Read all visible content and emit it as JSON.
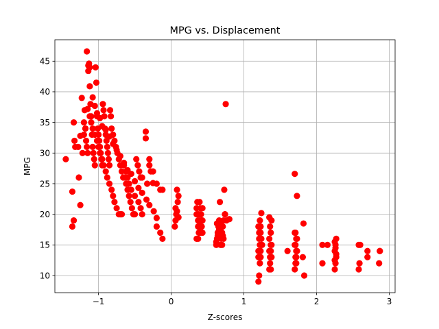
{
  "chart_data": {
    "type": "scatter",
    "title": "MPG vs. Displacement",
    "xlabel": "Z-scores",
    "ylabel": "MPG",
    "xlim": [
      -1.6,
      3.08
    ],
    "ylim": [
      7.2,
      48.5
    ],
    "xticks": [
      -1,
      0,
      1,
      2,
      3
    ],
    "xtick_labels": [
      "−1",
      "0",
      "1",
      "2",
      "3"
    ],
    "yticks": [
      10,
      15,
      20,
      25,
      30,
      35,
      40,
      45
    ],
    "ytick_labels": [
      "10",
      "15",
      "20",
      "25",
      "30",
      "35",
      "40",
      "45"
    ],
    "grid": true,
    "legend": "none",
    "point_color": "#ff0000",
    "series": [
      {
        "x": [
          -1.45,
          -1.36,
          -1.34,
          -1.33,
          -1.32,
          -1.28,
          -1.27,
          -1.25,
          -1.23,
          -1.22,
          -1.2,
          -1.19,
          -1.18,
          -1.17,
          -1.16,
          -1.15,
          -1.14,
          -1.13,
          -1.12,
          -1.11,
          -1.1,
          -1.09,
          -1.08,
          -1.07,
          -1.06,
          -1.05,
          -1.04,
          -1.03,
          -1.02,
          -1.01,
          -1.0,
          -0.99,
          -0.98,
          -0.97,
          -0.96,
          -0.95,
          -0.94,
          -0.93,
          -0.92,
          -0.91,
          -0.9,
          -0.89,
          -0.88,
          -0.87,
          -0.86,
          -0.85,
          -0.84,
          -0.83,
          -0.82,
          -0.8,
          -0.78,
          -0.76,
          -0.74,
          -0.72,
          -0.7,
          -0.68,
          -0.66,
          -0.64,
          -0.62,
          -0.6,
          -0.58,
          -0.56,
          -0.54,
          -0.52,
          -0.5,
          -0.48,
          -0.46,
          -0.44,
          -0.42,
          -0.4,
          -0.35,
          -0.33,
          -0.3,
          -0.28,
          -0.25,
          -0.2,
          -0.15,
          -0.12,
          -1.36,
          -1.34,
          -1.25,
          -1.2,
          -1.18,
          -1.15,
          -1.12,
          -1.1,
          -1.08,
          -1.05,
          -1.02,
          -1.0,
          -0.98,
          -0.95,
          -0.93,
          -0.9,
          -0.88,
          -0.85,
          -0.82,
          -0.8,
          -0.78,
          -0.75,
          -0.72,
          -0.7,
          -0.68,
          -0.65,
          -0.62,
          -0.6,
          -0.58,
          -0.55,
          -0.5,
          -0.45,
          -0.42,
          -0.4,
          -0.35,
          -0.3,
          -0.25,
          -0.2,
          -0.15,
          -0.12,
          -1.16,
          -1.14,
          -1.12,
          -1.08,
          -1.05,
          -1.02,
          -0.98,
          -0.95,
          -0.9,
          -0.85,
          -0.8,
          -0.75,
          -0.7,
          -0.65,
          -0.6,
          -0.55,
          -0.5,
          -0.45,
          -0.4,
          -0.34,
          -0.3,
          -0.24,
          -0.2,
          0.05,
          0.06,
          0.07,
          0.08,
          0.09,
          0.1,
          0.06,
          0.08,
          0.1,
          0.35,
          0.36,
          0.37,
          0.38,
          0.39,
          0.4,
          0.41,
          0.42,
          0.43,
          0.35,
          0.37,
          0.39,
          0.41,
          0.43,
          0.36,
          0.38,
          0.4,
          0.42,
          0.35,
          0.37,
          0.39,
          0.41,
          0.43,
          0.38,
          0.4,
          0.62,
          0.63,
          0.64,
          0.65,
          0.66,
          0.67,
          0.68,
          0.69,
          0.7,
          0.71,
          0.72,
          0.73,
          0.74,
          0.75,
          0.62,
          0.64,
          0.66,
          0.68,
          0.7,
          0.72,
          0.74,
          0.76,
          0.8,
          0.63,
          0.67,
          0.71,
          1.2,
          1.21,
          1.22,
          1.23,
          1.2,
          1.22,
          1.24,
          1.21,
          1.23,
          1.2,
          1.22,
          1.24,
          1.21,
          1.23,
          1.2,
          1.22,
          1.24,
          1.21,
          1.23,
          1.25,
          1.35,
          1.36,
          1.37,
          1.38,
          1.35,
          1.37,
          1.36,
          1.38,
          1.35,
          1.37,
          1.36,
          1.38,
          1.35,
          1.37,
          1.6,
          1.7,
          1.71,
          1.72,
          1.73,
          1.7,
          1.72,
          1.71,
          1.73,
          1.7,
          1.72,
          1.71,
          1.73,
          1.7,
          1.72,
          1.71,
          1.73,
          1.82,
          1.83,
          1.81,
          2.08,
          2.15,
          2.08,
          2.25,
          2.26,
          2.27,
          2.25,
          2.26,
          2.27,
          2.25,
          2.26,
          2.27,
          2.25,
          2.58,
          2.59,
          2.58,
          2.6,
          2.7,
          2.7,
          2.86,
          2.87,
          2.87
        ],
        "y": [
          29,
          23.7,
          35,
          32,
          31,
          31,
          26,
          21.5,
          39,
          30,
          35,
          37,
          34,
          32,
          31,
          30,
          43.4,
          44.6,
          44,
          38,
          36,
          33,
          31,
          30,
          29,
          28,
          44,
          41.5,
          36,
          34,
          33,
          32,
          31,
          30,
          29,
          28,
          38,
          37,
          36,
          34,
          33,
          32,
          31,
          30,
          29,
          28,
          37,
          36,
          34,
          33,
          32,
          31,
          30,
          29,
          28,
          27,
          26,
          26,
          25,
          24,
          23,
          22,
          21,
          20,
          20,
          29,
          28,
          27,
          26,
          26,
          32.4,
          25,
          29,
          27,
          25.1,
          25,
          24,
          24,
          18,
          19,
          32.8,
          33,
          34,
          37.2,
          36,
          35,
          34,
          33,
          32,
          31,
          30,
          29,
          28,
          27,
          26,
          25,
          24,
          23,
          22,
          21,
          20,
          20,
          20,
          28,
          27,
          26,
          25,
          24,
          23,
          22,
          21,
          20,
          33.5,
          28,
          27,
          18,
          17,
          16,
          46.6,
          44.3,
          40.9,
          39.1,
          37.7,
          36.5,
          35.7,
          34.4,
          33.8,
          32.7,
          31.5,
          30.5,
          29.5,
          28.4,
          27.2,
          26.6,
          25.4,
          24.3,
          23.5,
          22.4,
          21.5,
          20.5,
          19.4,
          18,
          21,
          20,
          24,
          22,
          23,
          19,
          20.5,
          19.5,
          21,
          20,
          19,
          18,
          22,
          21,
          19,
          18,
          17,
          16,
          18,
          19,
          20,
          21,
          22,
          17,
          18,
          19,
          20,
          16,
          17,
          18,
          19,
          20,
          17,
          15,
          16,
          17,
          18,
          19,
          22,
          15,
          16,
          17,
          18,
          19,
          24,
          20,
          38,
          15.5,
          16.5,
          17.5,
          18.5,
          15,
          16,
          20,
          19,
          19.2,
          18.5,
          17.2,
          16.5,
          9,
          10,
          12,
          13,
          14,
          15,
          16,
          17,
          18,
          13,
          14,
          15,
          16,
          17,
          18,
          19,
          20.2,
          13,
          14,
          15,
          11,
          13,
          14,
          15,
          16,
          17,
          18,
          19,
          19.5,
          11,
          12,
          13,
          14,
          15,
          14,
          11,
          12,
          13,
          14,
          15,
          16,
          17,
          23,
          26.6,
          14,
          15,
          16,
          17,
          12,
          13,
          14,
          18.5,
          10,
          13,
          12,
          15,
          15,
          11,
          12,
          13,
          14,
          15,
          16,
          15.5,
          14.5,
          13.5,
          12.5,
          11,
          12,
          15,
          15,
          13,
          14,
          12,
          14,
          14
        ]
      }
    ]
  }
}
